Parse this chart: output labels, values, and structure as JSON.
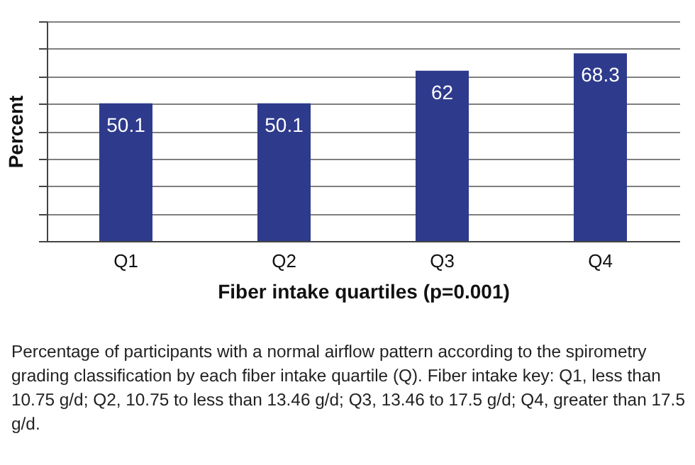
{
  "chart_data": {
    "type": "bar",
    "xlabel": "Fiber intake quartiles (p=0.001)",
    "ylabel": "Percent",
    "categories": [
      "Q1",
      "Q2",
      "Q3",
      "Q4"
    ],
    "values": [
      50.1,
      50.1,
      62,
      68.3
    ],
    "color": "#2e3a8c",
    "data_labels": true,
    "ylim": [
      0,
      80
    ],
    "yticks": [
      {
        "value": 0,
        "label": null
      },
      {
        "value": 10,
        "label": null
      },
      {
        "value": 20,
        "label": null
      },
      {
        "value": 30,
        "label": null
      },
      {
        "value": 40,
        "label": null
      },
      {
        "value": 50,
        "label": null
      },
      {
        "value": 60,
        "label": null
      },
      {
        "value": 70,
        "label": null
      },
      {
        "value": 80,
        "label": null
      }
    ],
    "grid": "y",
    "tick_labels": "x",
    "annotations": [
      "Percentage of participants with a normal airflow pattern according to the spirometry grading classification by each fiber intake quartile (Q). Fiber intake key: Q1, less than 10.75 g/d; Q2, 10.75 to less than 13.46 g/d; Q3, 13.46 to 17.5 g/d; Q4, greater than 17.5 g/d."
    ]
  }
}
